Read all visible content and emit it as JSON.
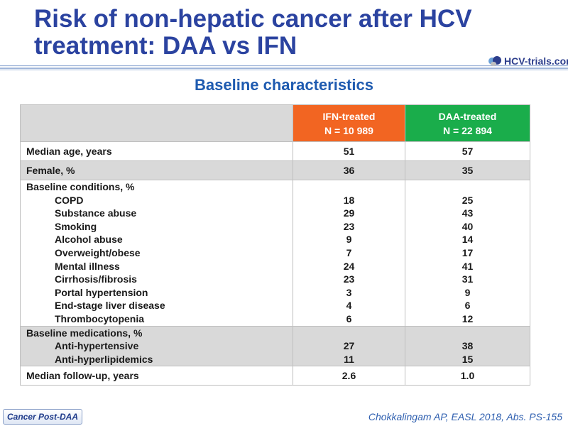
{
  "title": {
    "line1": "Risk of non-hepatic cancer after HCV",
    "line2": "treatment: DAA vs IFN"
  },
  "logo": {
    "text": "HCV-trials.com",
    "icon": "hcv-trials-logo-icon",
    "colors": [
      "#2d3e8c",
      "#6aa0d8",
      "#c0c0c0"
    ]
  },
  "subtitle": "Baseline characteristics",
  "table": {
    "header": {
      "ifn": {
        "line1": "IFN-treated",
        "line2": "N = 10 989",
        "color": "#f26522"
      },
      "daa": {
        "line1": "DAA-treated",
        "line2": "N = 22 894",
        "color": "#1aad4b"
      }
    },
    "rows": {
      "median_age": {
        "label": "Median age, years",
        "ifn": "51",
        "daa": "57"
      },
      "female": {
        "label": "Female, %",
        "ifn": "36",
        "daa": "35"
      },
      "baseline_conditions": {
        "label": "Baseline conditions, %",
        "items": [
          {
            "label": "COPD",
            "ifn": "18",
            "daa": "25"
          },
          {
            "label": "Substance abuse",
            "ifn": "29",
            "daa": "43"
          },
          {
            "label": "Smoking",
            "ifn": "23",
            "daa": "40"
          },
          {
            "label": "Alcohol abuse",
            "ifn": "9",
            "daa": "14"
          },
          {
            "label": "Overweight/obese",
            "ifn": "7",
            "daa": "17"
          },
          {
            "label": "Mental illness",
            "ifn": "24",
            "daa": "41"
          },
          {
            "label": "Cirrhosis/fibrosis",
            "ifn": "23",
            "daa": "31"
          },
          {
            "label": "Portal hypertension",
            "ifn": "3",
            "daa": "9"
          },
          {
            "label": "End-stage liver disease",
            "ifn": "4",
            "daa": "6"
          },
          {
            "label": "Thrombocytopenia",
            "ifn": "6",
            "daa": "12"
          }
        ]
      },
      "baseline_medications": {
        "label": "Baseline medications, %",
        "items": [
          {
            "label": "Anti-hypertensive",
            "ifn": "27",
            "daa": "38"
          },
          {
            "label": "Anti-hyperlipidemics",
            "ifn": "11",
            "daa": "15"
          }
        ]
      },
      "follow_up": {
        "label": "Median follow-up, years",
        "ifn": "2.6",
        "daa": "1.0"
      }
    }
  },
  "footer": {
    "tag": "Cancer Post-DAA",
    "citation": "Chokkalingam AP, EASL 2018, Abs. PS-155"
  }
}
